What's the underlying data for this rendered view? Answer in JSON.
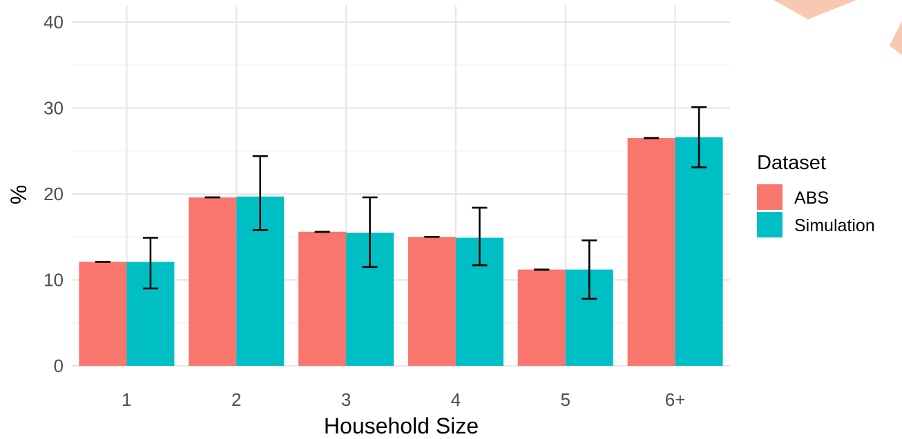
{
  "chart_data": {
    "type": "bar",
    "xlabel": "Household Size",
    "ylabel": "%",
    "ylim": [
      0,
      40
    ],
    "yticks": [
      0,
      10,
      20,
      30,
      40
    ],
    "grid": true,
    "categories": [
      "1",
      "2",
      "3",
      "4",
      "5",
      "6+"
    ],
    "legend": {
      "title": "Dataset",
      "position": "right"
    },
    "series": [
      {
        "name": "ABS",
        "color": "#F8766D",
        "values": [
          12.1,
          19.6,
          15.6,
          15.0,
          11.2,
          26.5
        ],
        "error_low": [
          12.1,
          19.6,
          15.6,
          15.0,
          11.2,
          26.5
        ],
        "error_high": [
          12.1,
          19.6,
          15.6,
          15.0,
          11.2,
          26.5
        ]
      },
      {
        "name": "Simulation",
        "color": "#00BFC4",
        "values": [
          12.1,
          19.7,
          15.5,
          14.9,
          11.2,
          26.6
        ],
        "error_low": [
          9.0,
          15.8,
          11.5,
          11.7,
          7.8,
          23.1
        ],
        "error_high": [
          14.9,
          24.4,
          19.6,
          18.4,
          14.6,
          30.1
        ]
      }
    ]
  }
}
